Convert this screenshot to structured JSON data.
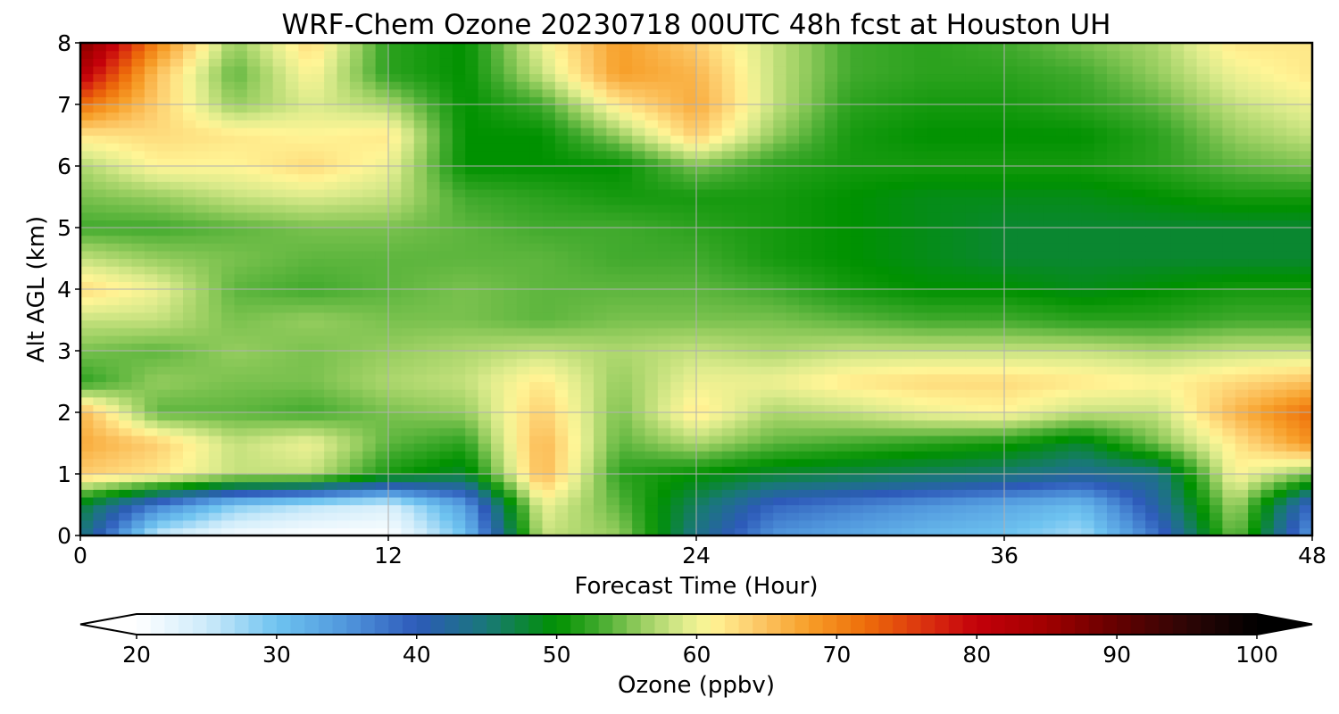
{
  "chart_data": {
    "type": "heatmap",
    "title": "WRF-Chem Ozone  20230718 00UTC 48h fcst at Houston UH",
    "xlabel": "Forecast Time (Hour)",
    "ylabel": "Alt AGL (km)",
    "xlim": [
      0,
      48
    ],
    "ylim": [
      0,
      8
    ],
    "x_ticks": [
      "0",
      "12",
      "24",
      "36",
      "48"
    ],
    "y_ticks": [
      "0",
      "1",
      "2",
      "3",
      "4",
      "5",
      "6",
      "7",
      "8"
    ],
    "grid": true,
    "colorbar": {
      "label": "Ozone  (ppbv)",
      "range": [
        20,
        100
      ],
      "ticks": [
        "20",
        "30",
        "40",
        "50",
        "60",
        "70",
        "80",
        "90",
        "100"
      ],
      "extend": "both",
      "placement": "bottom"
    },
    "x": [
      0,
      3,
      6,
      9,
      12,
      15,
      18,
      21,
      24,
      27,
      30,
      33,
      36,
      39,
      42,
      45,
      48
    ],
    "y": [
      0,
      0.5,
      1,
      1.5,
      2,
      2.5,
      3,
      3.5,
      4,
      4.5,
      5,
      5.5,
      6,
      6.5,
      7,
      7.5,
      8
    ],
    "z": [
      [
        45,
        25,
        21,
        20,
        20,
        30,
        58,
        56,
        44,
        35,
        33,
        31,
        30,
        27,
        38,
        55,
        34
      ],
      [
        48,
        37,
        29,
        26,
        24,
        34,
        60,
        54,
        46,
        39,
        37,
        35,
        33,
        31,
        42,
        57,
        38
      ],
      [
        64,
        62,
        58,
        58,
        51,
        48,
        66,
        52,
        50,
        48,
        47,
        46,
        45,
        43,
        44,
        61,
        55
      ],
      [
        67,
        64,
        58,
        60,
        54,
        52,
        66,
        54,
        57,
        54,
        53,
        52,
        51,
        48,
        55,
        62,
        69
      ],
      [
        66,
        54,
        54,
        53,
        55,
        56,
        64,
        55,
        62,
        57,
        58,
        60,
        61,
        58,
        58,
        66,
        72
      ],
      [
        52,
        56,
        55,
        55,
        57,
        58,
        62,
        56,
        60,
        60,
        62,
        63,
        63,
        62,
        61,
        63,
        65
      ],
      [
        55,
        54,
        56,
        55,
        56,
        57,
        58,
        57,
        58,
        57,
        58,
        58,
        58,
        58,
        57,
        58,
        58
      ],
      [
        58,
        58,
        55,
        56,
        55,
        55,
        54,
        55,
        55,
        55,
        54,
        53,
        53,
        52,
        52,
        53,
        53
      ],
      [
        63,
        60,
        54,
        53,
        54,
        55,
        54,
        54,
        54,
        53,
        51,
        50,
        50,
        49,
        50,
        51,
        51
      ],
      [
        58,
        56,
        55,
        54,
        54,
        54,
        54,
        53,
        53,
        51,
        50,
        49,
        48,
        48,
        48,
        48,
        48
      ],
      [
        53,
        53,
        54,
        55,
        55,
        54,
        53,
        53,
        52,
        51,
        50,
        49,
        48,
        48,
        48,
        48,
        48
      ],
      [
        55,
        56,
        58,
        59,
        58,
        53,
        52,
        51,
        51,
        51,
        50,
        49,
        49,
        49,
        50,
        51,
        51
      ],
      [
        57,
        61,
        61,
        63,
        60,
        50,
        50,
        50,
        55,
        52,
        51,
        51,
        51,
        51,
        52,
        54,
        55
      ],
      [
        62,
        63,
        62,
        61,
        62,
        50,
        50,
        56,
        64,
        56,
        51,
        50,
        50,
        50,
        52,
        56,
        58
      ],
      [
        72,
        64,
        56,
        59,
        57,
        50,
        53,
        62,
        67,
        58,
        52,
        51,
        51,
        52,
        54,
        58,
        60
      ],
      [
        82,
        65,
        54,
        61,
        52,
        50,
        58,
        68,
        66,
        58,
        53,
        52,
        52,
        53,
        56,
        60,
        62
      ],
      [
        88,
        70,
        56,
        63,
        52,
        50,
        60,
        68,
        64,
        58,
        53,
        52,
        53,
        55,
        57,
        62,
        62
      ]
    ]
  }
}
